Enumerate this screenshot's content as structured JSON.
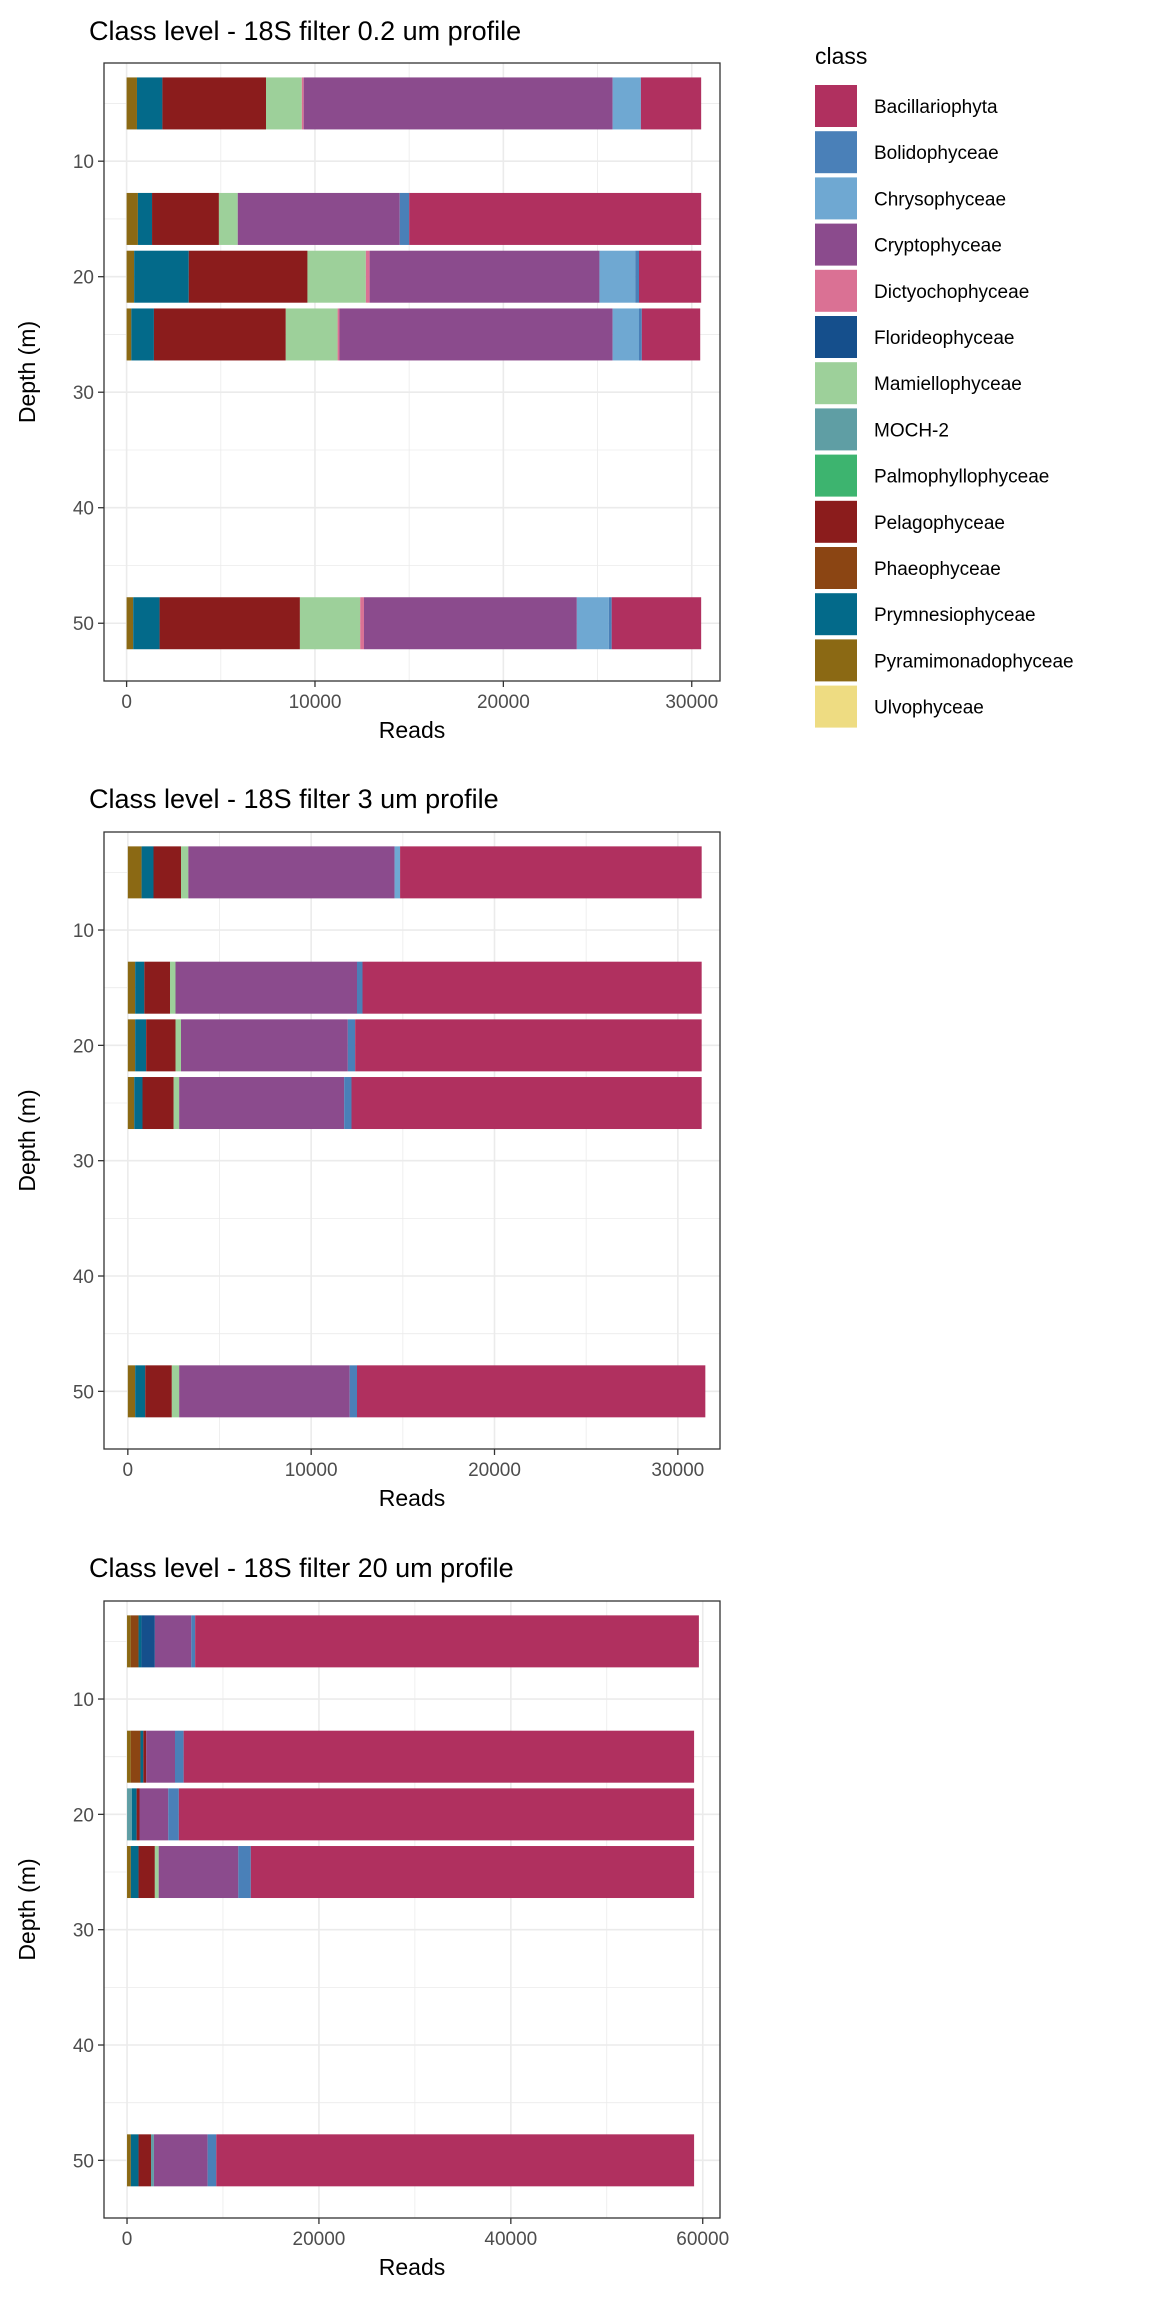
{
  "legend": {
    "title": "class",
    "entries": [
      {
        "name": "Bacillariophyta",
        "color": "#B0305F"
      },
      {
        "name": "Bolidophyceae",
        "color": "#4A80B8"
      },
      {
        "name": "Chrysophyceae",
        "color": "#6FA8D2"
      },
      {
        "name": "Cryptophyceae",
        "color": "#8B4B8D"
      },
      {
        "name": "Dictyochophyceae",
        "color": "#DA7194"
      },
      {
        "name": "Florideophyceae",
        "color": "#154F8C"
      },
      {
        "name": "Mamiellophyceae",
        "color": "#9DD09A"
      },
      {
        "name": "MOCH-2",
        "color": "#5F9EA4"
      },
      {
        "name": "Palmophyllophyceae",
        "color": "#3DB46F"
      },
      {
        "name": "Pelagophyceae",
        "color": "#8B1C1C"
      },
      {
        "name": "Phaeophyceae",
        "color": "#8B4513"
      },
      {
        "name": "Prymnesiophyceae",
        "color": "#036A8A"
      },
      {
        "name": "Pyramimonadophyceae",
        "color": "#8B6914"
      },
      {
        "name": "Ulvophyceae",
        "color": "#EEDC82"
      }
    ]
  },
  "chart_data": [
    {
      "type": "bar",
      "orientation": "horizontal",
      "stacked": true,
      "title": "Class level - 18S filter 0.2 um profile",
      "xlabel": "Reads",
      "ylabel": "Depth (m)",
      "xlim": [
        -1200,
        31500
      ],
      "ylim": [
        1.5,
        55
      ],
      "y_reversed": true,
      "xticks": [
        0,
        10000,
        20000,
        30000
      ],
      "yticks": [
        10,
        20,
        30,
        40,
        50
      ],
      "grid": true,
      "bars": [
        {
          "depth": 5,
          "segments": [
            {
              "class": "Pyramimonadophyceae",
              "value": 550
            },
            {
              "class": "Prymnesiophyceae",
              "value": 1350
            },
            {
              "class": "Pelagophyceae",
              "value": 5500
            },
            {
              "class": "Mamiellophyceae",
              "value": 1900
            },
            {
              "class": "Dictyochophyceae",
              "value": 100
            },
            {
              "class": "Cryptophyceae",
              "value": 16400
            },
            {
              "class": "Chrysophyceae",
              "value": 1500
            },
            {
              "class": "Bacillariophyta",
              "value": 3200
            }
          ]
        },
        {
          "depth": 15,
          "segments": [
            {
              "class": "Pyramimonadophyceae",
              "value": 600
            },
            {
              "class": "Prymnesiophyceae",
              "value": 750
            },
            {
              "class": "Pelagophyceae",
              "value": 3550
            },
            {
              "class": "Mamiellophyceae",
              "value": 1000
            },
            {
              "class": "Cryptophyceae",
              "value": 8600
            },
            {
              "class": "Bolidophyceae",
              "value": 500
            },
            {
              "class": "Bacillariophyta",
              "value": 15500
            }
          ]
        },
        {
          "depth": 20,
          "segments": [
            {
              "class": "Pyramimonadophyceae",
              "value": 400
            },
            {
              "class": "Prymnesiophyceae",
              "value": 2900
            },
            {
              "class": "Pelagophyceae",
              "value": 6300
            },
            {
              "class": "Mamiellophyceae",
              "value": 3100
            },
            {
              "class": "Dictyochophyceae",
              "value": 200
            },
            {
              "class": "Cryptophyceae",
              "value": 12200
            },
            {
              "class": "Chrysophyceae",
              "value": 1900
            },
            {
              "class": "Bolidophyceae",
              "value": 200
            },
            {
              "class": "Bacillariophyta",
              "value": 3300
            }
          ]
        },
        {
          "depth": 25,
          "segments": [
            {
              "class": "Pyramimonadophyceae",
              "value": 250
            },
            {
              "class": "Prymnesiophyceae",
              "value": 1200
            },
            {
              "class": "Pelagophyceae",
              "value": 7000
            },
            {
              "class": "Mamiellophyceae",
              "value": 2750
            },
            {
              "class": "Dictyochophyceae",
              "value": 100
            },
            {
              "class": "Cryptophyceae",
              "value": 14500
            },
            {
              "class": "Chrysophyceae",
              "value": 1400
            },
            {
              "class": "Bolidophyceae",
              "value": 150
            },
            {
              "class": "Bacillariophyta",
              "value": 3100
            }
          ]
        },
        {
          "depth": 50,
          "segments": [
            {
              "class": "Pyramimonadophyceae",
              "value": 350
            },
            {
              "class": "Prymnesiophyceae",
              "value": 1400
            },
            {
              "class": "Pelagophyceae",
              "value": 7450
            },
            {
              "class": "Mamiellophyceae",
              "value": 3200
            },
            {
              "class": "Dictyochophyceae",
              "value": 200
            },
            {
              "class": "Cryptophyceae",
              "value": 11300
            },
            {
              "class": "Chrysophyceae",
              "value": 1700
            },
            {
              "class": "Bolidophyceae",
              "value": 150
            },
            {
              "class": "Bacillariophyta",
              "value": 4750
            }
          ]
        }
      ]
    },
    {
      "type": "bar",
      "orientation": "horizontal",
      "stacked": true,
      "title": "Class level - 18S filter 3 um profile",
      "xlabel": "Reads",
      "ylabel": "Depth (m)",
      "xlim": [
        -1300,
        32300
      ],
      "ylim": [
        1.5,
        55
      ],
      "y_reversed": true,
      "xticks": [
        0,
        10000,
        20000,
        30000
      ],
      "yticks": [
        10,
        20,
        30,
        40,
        50
      ],
      "grid": true,
      "bars": [
        {
          "depth": 5,
          "segments": [
            {
              "class": "Pyramimonadophyceae",
              "value": 750
            },
            {
              "class": "Prymnesiophyceae",
              "value": 650
            },
            {
              "class": "Pelagophyceae",
              "value": 1500
            },
            {
              "class": "Mamiellophyceae",
              "value": 400
            },
            {
              "class": "Cryptophyceae",
              "value": 11250
            },
            {
              "class": "Chrysophyceae",
              "value": 300
            },
            {
              "class": "Bacillariophyta",
              "value": 16450
            }
          ]
        },
        {
          "depth": 15,
          "segments": [
            {
              "class": "Pyramimonadophyceae",
              "value": 400
            },
            {
              "class": "Prymnesiophyceae",
              "value": 500
            },
            {
              "class": "Pelagophyceae",
              "value": 1400
            },
            {
              "class": "Mamiellophyceae",
              "value": 300
            },
            {
              "class": "Cryptophyceae",
              "value": 9900
            },
            {
              "class": "Bolidophyceae",
              "value": 300
            },
            {
              "class": "Bacillariophyta",
              "value": 18500
            }
          ]
        },
        {
          "depth": 20,
          "segments": [
            {
              "class": "Pyramimonadophyceae",
              "value": 400
            },
            {
              "class": "Prymnesiophyceae",
              "value": 600
            },
            {
              "class": "Pelagophyceae",
              "value": 1600
            },
            {
              "class": "Mamiellophyceae",
              "value": 300
            },
            {
              "class": "Cryptophyceae",
              "value": 9100
            },
            {
              "class": "Bolidophyceae",
              "value": 400
            },
            {
              "class": "Bacillariophyta",
              "value": 18900
            }
          ]
        },
        {
          "depth": 25,
          "segments": [
            {
              "class": "Pyramimonadophyceae",
              "value": 350
            },
            {
              "class": "Prymnesiophyceae",
              "value": 450
            },
            {
              "class": "Pelagophyceae",
              "value": 1700
            },
            {
              "class": "Mamiellophyceae",
              "value": 300
            },
            {
              "class": "Cryptophyceae",
              "value": 9000
            },
            {
              "class": "Bolidophyceae",
              "value": 400
            },
            {
              "class": "Bacillariophyta",
              "value": 19100
            }
          ]
        },
        {
          "depth": 50,
          "segments": [
            {
              "class": "Pyramimonadophyceae",
              "value": 400
            },
            {
              "class": "Prymnesiophyceae",
              "value": 550
            },
            {
              "class": "Pelagophyceae",
              "value": 1450
            },
            {
              "class": "Mamiellophyceae",
              "value": 400
            },
            {
              "class": "Cryptophyceae",
              "value": 9300
            },
            {
              "class": "Bolidophyceae",
              "value": 400
            },
            {
              "class": "Bacillariophyta",
              "value": 19000
            }
          ]
        }
      ]
    },
    {
      "type": "bar",
      "orientation": "horizontal",
      "stacked": true,
      "title": "Class level - 18S filter 20 um profile",
      "xlabel": "Reads",
      "ylabel": "Depth (m)",
      "xlim": [
        -2400,
        61800
      ],
      "ylim": [
        1.5,
        55
      ],
      "y_reversed": true,
      "xticks": [
        0,
        20000,
        40000,
        60000
      ],
      "yticks": [
        10,
        20,
        30,
        40,
        50
      ],
      "grid": true,
      "bars": [
        {
          "depth": 5,
          "segments": [
            {
              "class": "Pyramimonadophyceae",
              "value": 400
            },
            {
              "class": "Phaeophyceae",
              "value": 800
            },
            {
              "class": "Prymnesiophyceae",
              "value": 300
            },
            {
              "class": "Florideophyceae",
              "value": 1400
            },
            {
              "class": "Cryptophyceae",
              "value": 3800
            },
            {
              "class": "Bolidophyceae",
              "value": 400
            },
            {
              "class": "Bacillariophyta",
              "value": 52500
            }
          ]
        },
        {
          "depth": 15,
          "segments": [
            {
              "class": "Pyramimonadophyceae",
              "value": 400
            },
            {
              "class": "Phaeophyceae",
              "value": 1000
            },
            {
              "class": "Prymnesiophyceae",
              "value": 300
            },
            {
              "class": "Pelagophyceae",
              "value": 300
            },
            {
              "class": "Cryptophyceae",
              "value": 3000
            },
            {
              "class": "Bolidophyceae",
              "value": 900
            },
            {
              "class": "Bacillariophyta",
              "value": 53200
            }
          ]
        },
        {
          "depth": 20,
          "segments": [
            {
              "class": "MOCH-2",
              "value": 500
            },
            {
              "class": "Prymnesiophyceae",
              "value": 500
            },
            {
              "class": "Pelagophyceae",
              "value": 300
            },
            {
              "class": "Cryptophyceae",
              "value": 3000
            },
            {
              "class": "Bolidophyceae",
              "value": 1100
            },
            {
              "class": "Bacillariophyta",
              "value": 53700
            }
          ]
        },
        {
          "depth": 25,
          "segments": [
            {
              "class": "Pyramimonadophyceae",
              "value": 400
            },
            {
              "class": "Prymnesiophyceae",
              "value": 800
            },
            {
              "class": "Pelagophyceae",
              "value": 1700
            },
            {
              "class": "Mamiellophyceae",
              "value": 400
            },
            {
              "class": "Cryptophyceae",
              "value": 8300
            },
            {
              "class": "Bolidophyceae",
              "value": 1300
            },
            {
              "class": "Bacillariophyta",
              "value": 46200
            }
          ]
        },
        {
          "depth": 50,
          "segments": [
            {
              "class": "Pyramimonadophyceae",
              "value": 400
            },
            {
              "class": "Prymnesiophyceae",
              "value": 800
            },
            {
              "class": "Pelagophyceae",
              "value": 1300
            },
            {
              "class": "MOCH-2",
              "value": 300
            },
            {
              "class": "Cryptophyceae",
              "value": 5600
            },
            {
              "class": "Bolidophyceae",
              "value": 900
            },
            {
              "class": "Bacillariophyta",
              "value": 49800
            }
          ]
        }
      ]
    }
  ]
}
